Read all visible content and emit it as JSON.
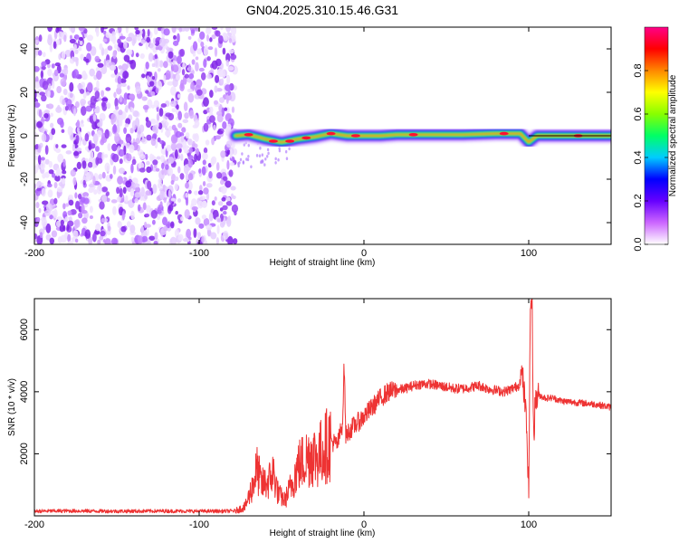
{
  "title": "GN04.2025.310.15.46.G31",
  "chart_data": [
    {
      "type": "heatmap",
      "name": "spectrogram",
      "xlabel": "Height of straight line (km)",
      "ylabel": "Frequency (Hz)",
      "xlim": [
        -200,
        150
      ],
      "ylim": [
        -50,
        50
      ],
      "xticks": [
        -200,
        -100,
        0,
        100
      ],
      "yticks": [
        -40,
        -20,
        0,
        20,
        40
      ],
      "noise_region_x": [
        -200,
        -78
      ],
      "signal_band": {
        "x_start": -78,
        "x_end": 150,
        "center_frequency_points": [
          [
            -78,
            0
          ],
          [
            -70,
            0.5
          ],
          [
            -60,
            -1.5
          ],
          [
            -50,
            -3
          ],
          [
            -40,
            -1.5
          ],
          [
            -30,
            -0.5
          ],
          [
            -20,
            1
          ],
          [
            -10,
            0
          ],
          [
            0,
            0
          ],
          [
            10,
            0
          ],
          [
            20,
            0.5
          ],
          [
            40,
            0.5
          ],
          [
            60,
            0.5
          ],
          [
            80,
            1
          ],
          [
            95,
            1
          ],
          [
            100,
            -3
          ],
          [
            105,
            0
          ],
          [
            120,
            0
          ],
          [
            150,
            0
          ]
        ]
      },
      "colorbar": {
        "label": "Normalized spectral amplitude",
        "range": [
          0,
          1
        ],
        "ticks": [
          0.0,
          0.2,
          0.4,
          0.6,
          0.8
        ],
        "tick_labels": [
          "0.0",
          "0.2",
          "0.4",
          "0.6",
          "0.8"
        ],
        "colors": [
          "#ffffff",
          "#cc66ff",
          "#6600ff",
          "#0000ff",
          "#00ccff",
          "#00ff66",
          "#88ff00",
          "#ffff00",
          "#ff8800",
          "#ff0000",
          "#ff0088"
        ]
      }
    },
    {
      "type": "line",
      "name": "snr",
      "xlabel": "Height of straight line (km)",
      "ylabel": "SNR (10 * v/v)",
      "xlim": [
        -200,
        150
      ],
      "ylim": [
        0,
        7000
      ],
      "xticks": [
        -200,
        -100,
        0,
        100
      ],
      "yticks": [
        2000,
        4000,
        6000
      ],
      "color": "#ee3333",
      "series": [
        {
          "name": "SNR",
          "points": [
            [
              -200,
              150
            ],
            [
              -180,
              160
            ],
            [
              -150,
              150
            ],
            [
              -120,
              155
            ],
            [
              -100,
              150
            ],
            [
              -85,
              150
            ],
            [
              -78,
              160
            ],
            [
              -72,
              300
            ],
            [
              -68,
              900
            ],
            [
              -65,
              1500
            ],
            [
              -62,
              1000
            ],
            [
              -58,
              1100
            ],
            [
              -55,
              1400
            ],
            [
              -52,
              700
            ],
            [
              -48,
              500
            ],
            [
              -44,
              1000
            ],
            [
              -40,
              1600
            ],
            [
              -36,
              1800
            ],
            [
              -32,
              2000
            ],
            [
              -28,
              1900
            ],
            [
              -24,
              2200
            ],
            [
              -20,
              2400
            ],
            [
              -16,
              2300
            ],
            [
              -13,
              3000
            ],
            [
              -12,
              4900
            ],
            [
              -11,
              2600
            ],
            [
              -8,
              2800
            ],
            [
              -4,
              3000
            ],
            [
              0,
              3200
            ],
            [
              5,
              3500
            ],
            [
              10,
              3800
            ],
            [
              15,
              4000
            ],
            [
              20,
              4050
            ],
            [
              25,
              4100
            ],
            [
              30,
              4200
            ],
            [
              35,
              4250
            ],
            [
              40,
              4250
            ],
            [
              45,
              4200
            ],
            [
              50,
              4150
            ],
            [
              55,
              4100
            ],
            [
              60,
              4100
            ],
            [
              65,
              4150
            ],
            [
              70,
              4200
            ],
            [
              75,
              4100
            ],
            [
              80,
              4050
            ],
            [
              85,
              4000
            ],
            [
              90,
              4100
            ],
            [
              94,
              4200
            ],
            [
              96,
              4600
            ],
            [
              98,
              3500
            ],
            [
              99,
              2500
            ],
            [
              100,
              800
            ],
            [
              101,
              6800
            ],
            [
              102,
              7000
            ],
            [
              103,
              2500
            ],
            [
              104,
              3700
            ],
            [
              106,
              3900
            ],
            [
              110,
              3800
            ],
            [
              115,
              3800
            ],
            [
              120,
              3700
            ],
            [
              130,
              3650
            ],
            [
              140,
              3600
            ],
            [
              150,
              3500
            ]
          ]
        }
      ]
    }
  ]
}
